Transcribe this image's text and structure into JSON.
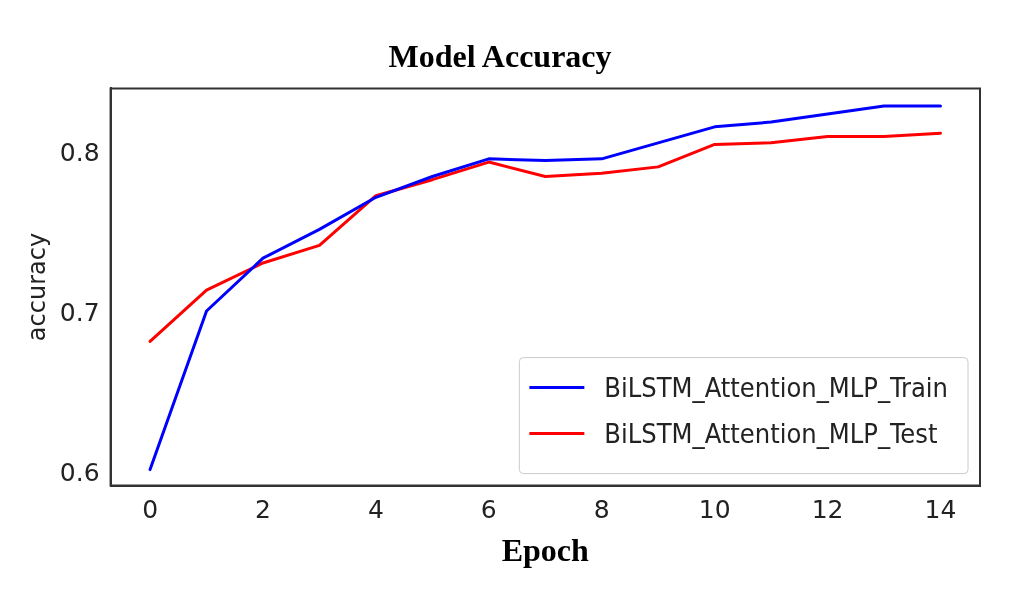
{
  "chart_data": {
    "type": "line",
    "title": "Model Accuracy",
    "xlabel": "Epoch",
    "ylabel": "accuracy",
    "x": [
      0,
      1,
      2,
      3,
      4,
      5,
      6,
      7,
      8,
      9,
      10,
      11,
      12,
      13,
      14
    ],
    "series": [
      {
        "name": "BiLSTM_Attention_MLP_Train",
        "color": "#0000ff",
        "values": [
          0.603,
          0.702,
          0.735,
          0.753,
          0.773,
          0.786,
          0.797,
          0.796,
          0.797,
          0.807,
          0.817,
          0.82,
          0.825,
          0.83,
          0.83
        ]
      },
      {
        "name": "BiLSTM_Attention_MLP_Test",
        "color": "#ff0000",
        "values": [
          0.683,
          0.715,
          0.732,
          0.743,
          0.774,
          0.784,
          0.795,
          0.786,
          0.788,
          0.792,
          0.806,
          0.807,
          0.811,
          0.811,
          0.813
        ]
      }
    ],
    "xlim": [
      -0.7,
      14.7
    ],
    "xticks": [
      0,
      2,
      4,
      6,
      8,
      10,
      12,
      14
    ],
    "ylim": [
      0.593,
      0.841
    ],
    "yticks": [
      0.6,
      0.7,
      0.8
    ],
    "grid": false,
    "legend": "bottom right",
    "marker": "none",
    "line_style": "solid"
  }
}
